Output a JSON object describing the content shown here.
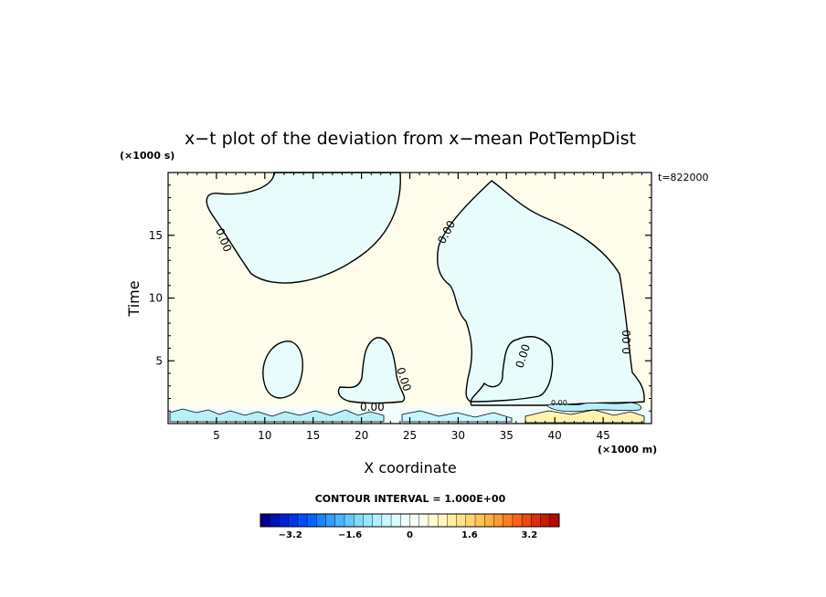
{
  "chart_data": {
    "type": "contour",
    "title": "x−t plot of the deviation from x−mean PotTempDist",
    "xlabel": "X coordinate",
    "ylabel": "Time",
    "x_unit": "(×1000 m)",
    "y_unit": "(×1000 s)",
    "time_note": "t=822000",
    "xlim": [
      0,
      50
    ],
    "ylim": [
      0,
      20
    ],
    "x_ticks": [
      5,
      10,
      15,
      20,
      25,
      30,
      35,
      40,
      45
    ],
    "y_ticks": [
      5,
      10,
      15
    ],
    "contour_interval_label": "CONTOUR INTERVAL = 1.000E+00",
    "contour_labels": [
      "0.00",
      "0.00",
      "0.00",
      "0.00",
      "0.00",
      "0.00",
      "0.00"
    ],
    "colorbar": {
      "range": [
        -4,
        4
      ],
      "ticks": [
        "−3.2",
        "−1.6",
        "0",
        "1.6",
        "3.2"
      ],
      "tick_values": [
        -3.2,
        -1.6,
        0,
        1.6,
        3.2
      ],
      "colors": [
        "#00008c",
        "#0011b4",
        "#0022d2",
        "#0035e8",
        "#004cf7",
        "#0066ff",
        "#1a82ff",
        "#339cff",
        "#4db4ff",
        "#66c8ff",
        "#80d9ff",
        "#99e6ff",
        "#b3f0ff",
        "#c8f7ff",
        "#dcfbff",
        "#edfdff",
        "#f5fff5",
        "#ffffe8",
        "#ffffd0",
        "#fff7b8",
        "#ffeea0",
        "#ffe288",
        "#ffd470",
        "#ffc458",
        "#ffb040",
        "#ff9a30",
        "#ff8020",
        "#f86418",
        "#ec4810",
        "#dc300a",
        "#c81a06",
        "#b00a02"
      ]
    },
    "region_colors": {
      "negative": "#e8fcfc",
      "positive": "#fefdec",
      "low_band_neg": "#b8f0f8",
      "low_band_pos": "#fff4b0"
    }
  }
}
